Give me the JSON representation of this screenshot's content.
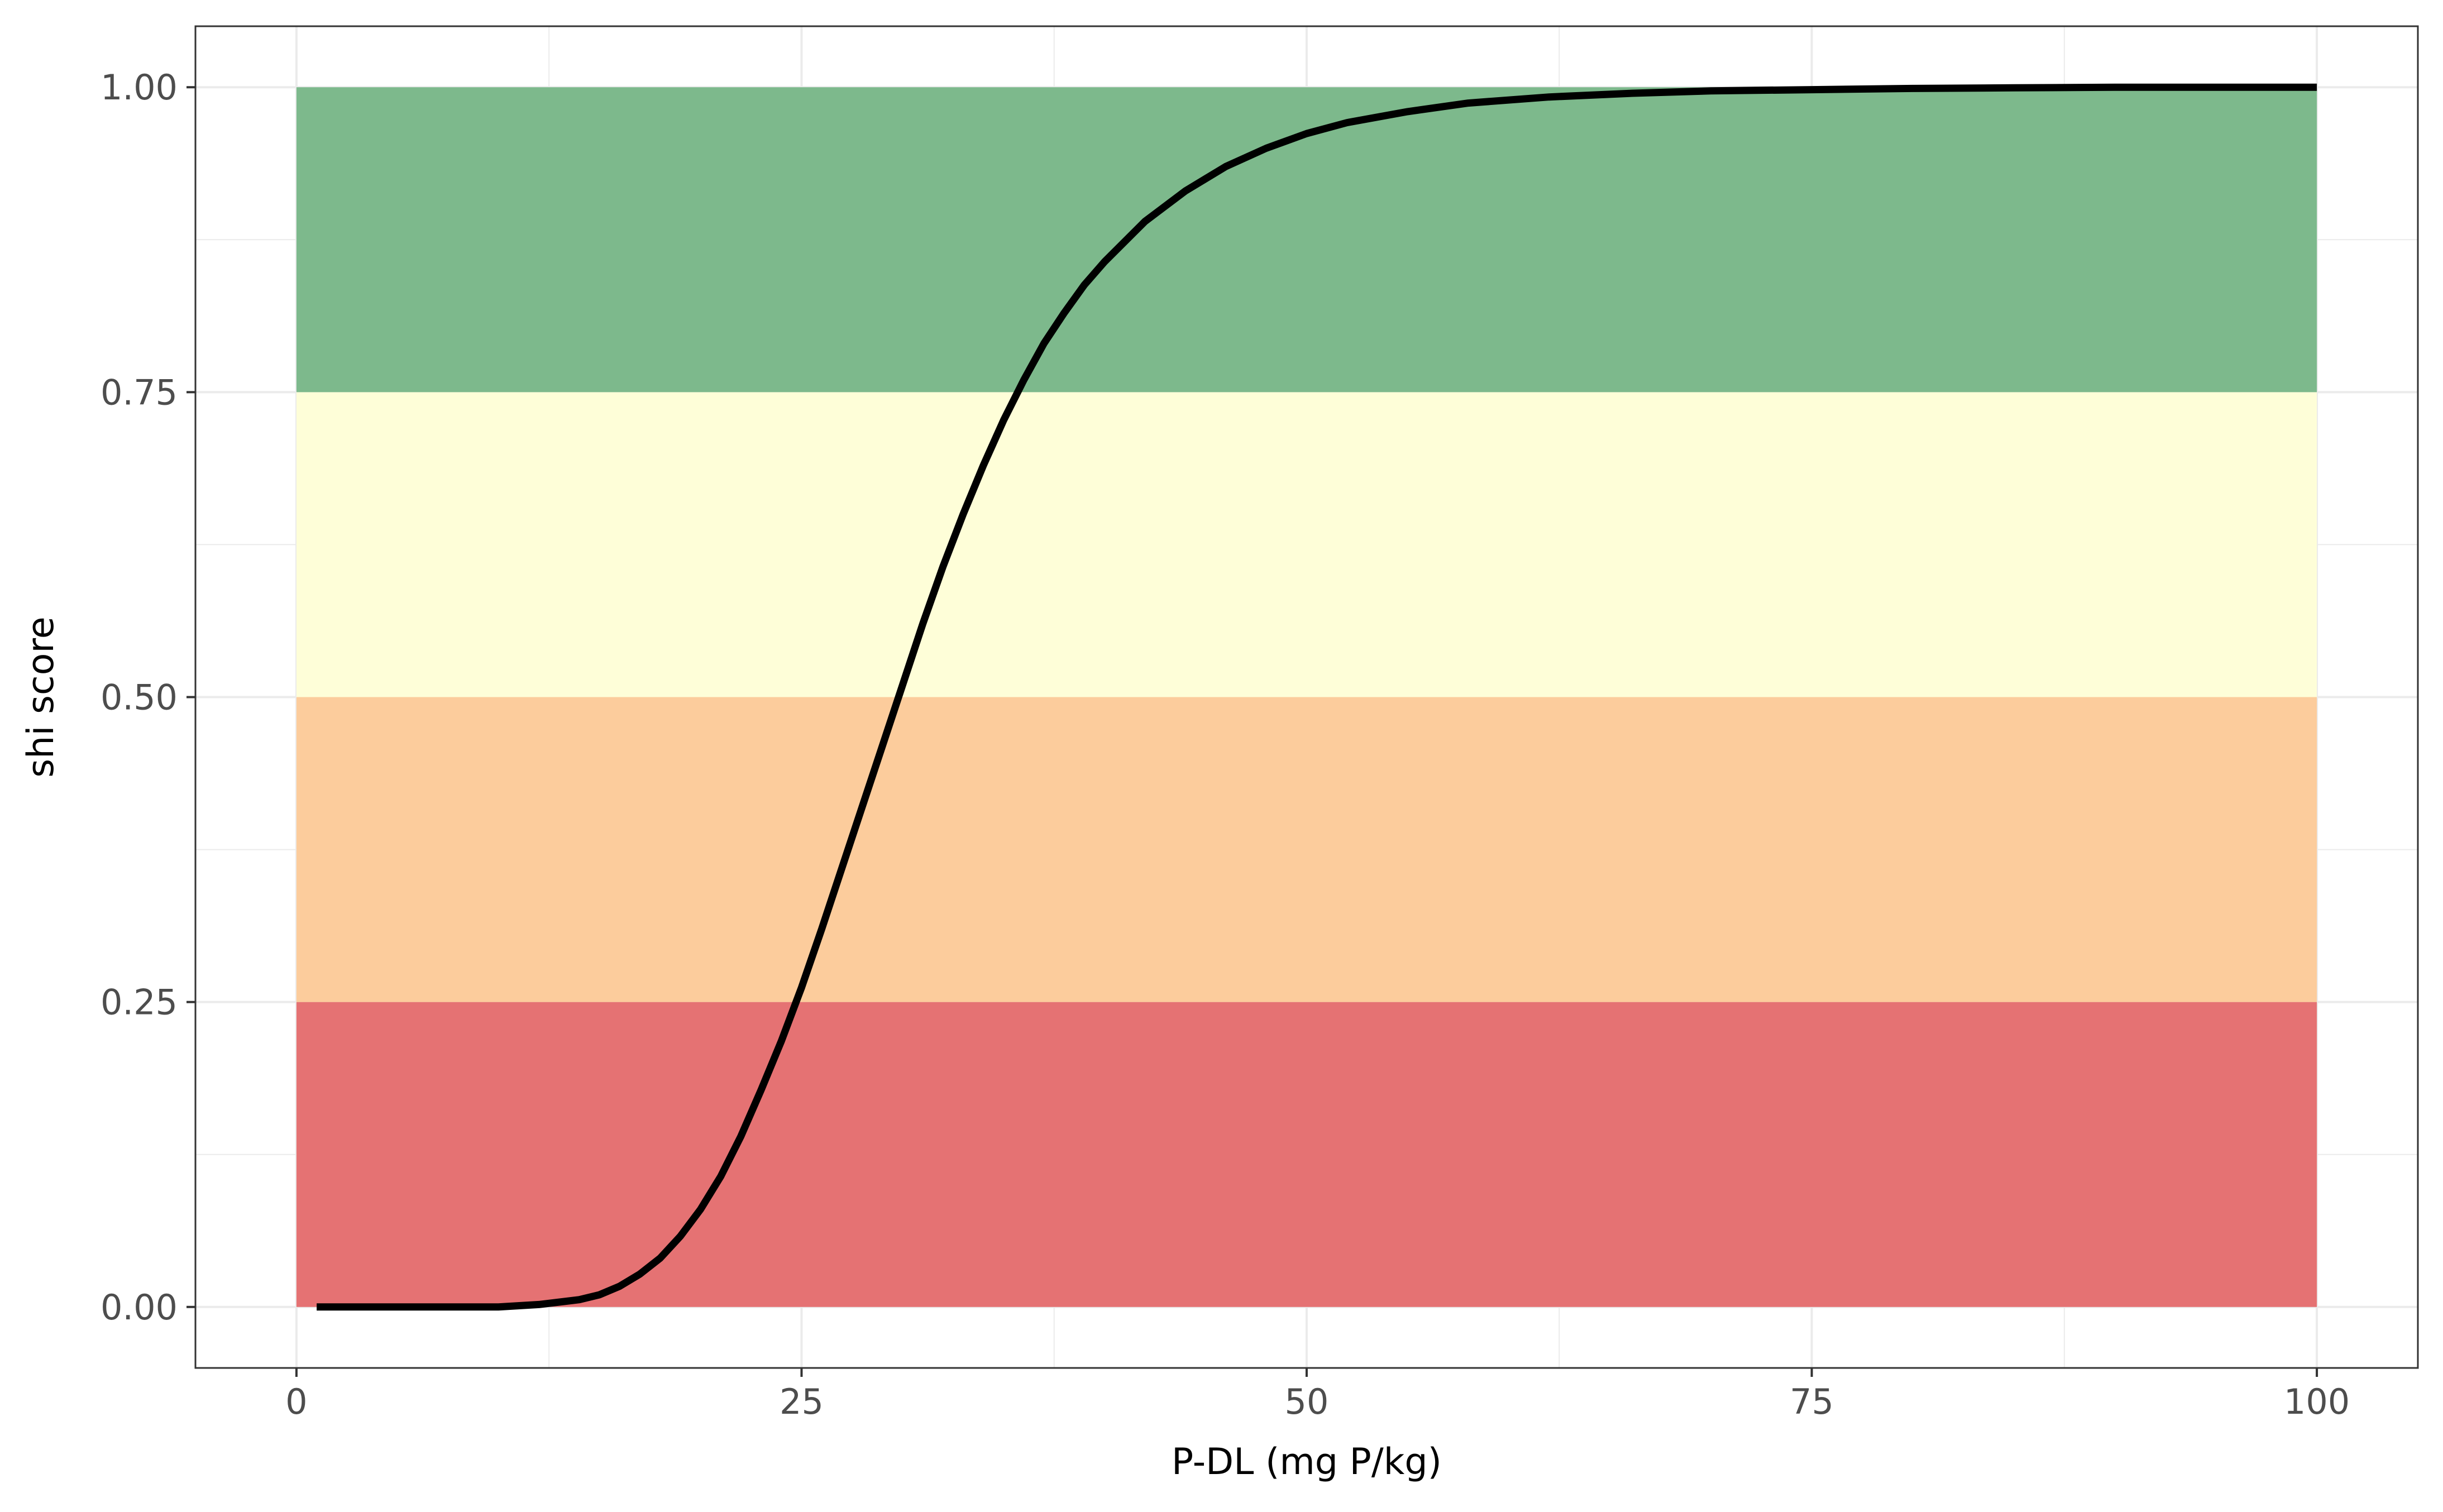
{
  "chart_data": {
    "type": "line",
    "title": "",
    "xlabel": "P-DL (mg P/kg)",
    "ylabel": "shi score",
    "xlim": [
      -5,
      105
    ],
    "ylim": [
      -0.05,
      1.05
    ],
    "x_ticks": [
      0,
      25,
      50,
      75,
      100
    ],
    "x_tick_labels": [
      "0",
      "25",
      "50",
      "75",
      "100"
    ],
    "y_ticks": [
      0,
      0.25,
      0.5,
      0.75,
      1
    ],
    "y_tick_labels": [
      "0.00",
      "0.25",
      "0.50",
      "0.75",
      "1.00"
    ],
    "grid": true,
    "legend": "none",
    "bands": [
      {
        "ymin": 0.0,
        "ymax": 0.25,
        "xmin": 0,
        "xmax": 100,
        "color": "#e57273"
      },
      {
        "ymin": 0.25,
        "ymax": 0.5,
        "xmin": 0,
        "xmax": 100,
        "color": "#fccc9c"
      },
      {
        "ymin": 0.5,
        "ymax": 0.75,
        "xmin": 0,
        "xmax": 100,
        "color": "#fefed8"
      },
      {
        "ymin": 0.75,
        "ymax": 1.0,
        "xmin": 0,
        "xmax": 100,
        "color": "#7db98c"
      }
    ],
    "series": [
      {
        "line_color": "#000000",
        "x": [
          1,
          5,
          10,
          12,
          14,
          15,
          16,
          17,
          18,
          19,
          20,
          21,
          22,
          23,
          24,
          25,
          26,
          27,
          28,
          29,
          30,
          31,
          32,
          33,
          34,
          35,
          36,
          37,
          38,
          39,
          40,
          42,
          44,
          46,
          48,
          50,
          52,
          55,
          58,
          62,
          66,
          70,
          75,
          80,
          85,
          90,
          95,
          100
        ],
        "y": [
          0.0,
          0.0,
          0.0,
          0.002,
          0.006,
          0.01,
          0.017,
          0.027,
          0.04,
          0.058,
          0.08,
          0.107,
          0.14,
          0.178,
          0.218,
          0.262,
          0.31,
          0.36,
          0.41,
          0.46,
          0.51,
          0.56,
          0.607,
          0.65,
          0.69,
          0.727,
          0.76,
          0.79,
          0.815,
          0.838,
          0.857,
          0.89,
          0.915,
          0.935,
          0.95,
          0.962,
          0.971,
          0.98,
          0.987,
          0.992,
          0.995,
          0.997,
          0.998,
          0.999,
          0.9995,
          1.0,
          1.0,
          1.0
        ]
      }
    ]
  }
}
